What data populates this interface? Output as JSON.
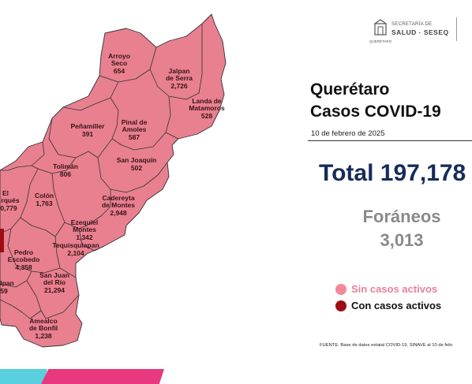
{
  "header": {
    "logo": {
      "line1": "SECRETARÍA DE",
      "line2": "SALUD · SESEQ",
      "line3": "QUERÉTARO",
      "icon": "state-emblem-icon"
    },
    "title_line1": "Querétaro",
    "title_line2": "Casos COVID-19",
    "date": "10 de febrero de 2025"
  },
  "summary": {
    "total": "Total 197,178",
    "foraneos_label": "Foráneos",
    "foraneos_value": "3,013"
  },
  "legend": [
    {
      "label": "Sin casos activos",
      "color": "#f2889a"
    },
    {
      "label": "Con casos activos",
      "color": "#9b0f14"
    }
  ],
  "source": "FUENTE: Base de datos estatal COVID-19, SINAVE  al 10 de febr",
  "map": {
    "region_color": "#e8808f",
    "border_color": "#333333",
    "active_color": "#9b0f14",
    "municipalities": [
      {
        "name_lines": [
          "Arroyo",
          "Seco"
        ],
        "cases": "654"
      },
      {
        "name_lines": [
          "Jalpan",
          "de Serra"
        ],
        "cases": "2,726"
      },
      {
        "name_lines": [
          "Landa de",
          "Matamoros"
        ],
        "cases": "528"
      },
      {
        "name_lines": [
          "Peñamiller"
        ],
        "cases": "391"
      },
      {
        "name_lines": [
          "Pinal de",
          "Amoles"
        ],
        "cases": "587"
      },
      {
        "name_lines": [
          "San Joaquín"
        ],
        "cases": "502"
      },
      {
        "name_lines": [
          "Tolimán"
        ],
        "cases": "806"
      },
      {
        "name_lines": [
          "El",
          "rqués"
        ],
        "cases": "0,779"
      },
      {
        "name_lines": [
          "Colón"
        ],
        "cases": "1,763"
      },
      {
        "name_lines": [
          "Cadereyta",
          "de Montes"
        ],
        "cases": "2,948"
      },
      {
        "name_lines": [
          "Ezequiel",
          "Montes"
        ],
        "cases": "1,342"
      },
      {
        "name_lines": [
          "Tequisquiapan"
        ],
        "cases": "2,104"
      },
      {
        "name_lines": [
          "Pedro",
          "Escobedo"
        ],
        "cases": "4,358"
      },
      {
        "name_lines": [
          "San Juan",
          "del Río"
        ],
        "cases": "21,294"
      },
      {
        "name_lines": [
          "lpan"
        ],
        "cases": "59"
      },
      {
        "name_lines": [
          "Amealco",
          "de Bonfil"
        ],
        "cases": "1,238"
      }
    ]
  }
}
